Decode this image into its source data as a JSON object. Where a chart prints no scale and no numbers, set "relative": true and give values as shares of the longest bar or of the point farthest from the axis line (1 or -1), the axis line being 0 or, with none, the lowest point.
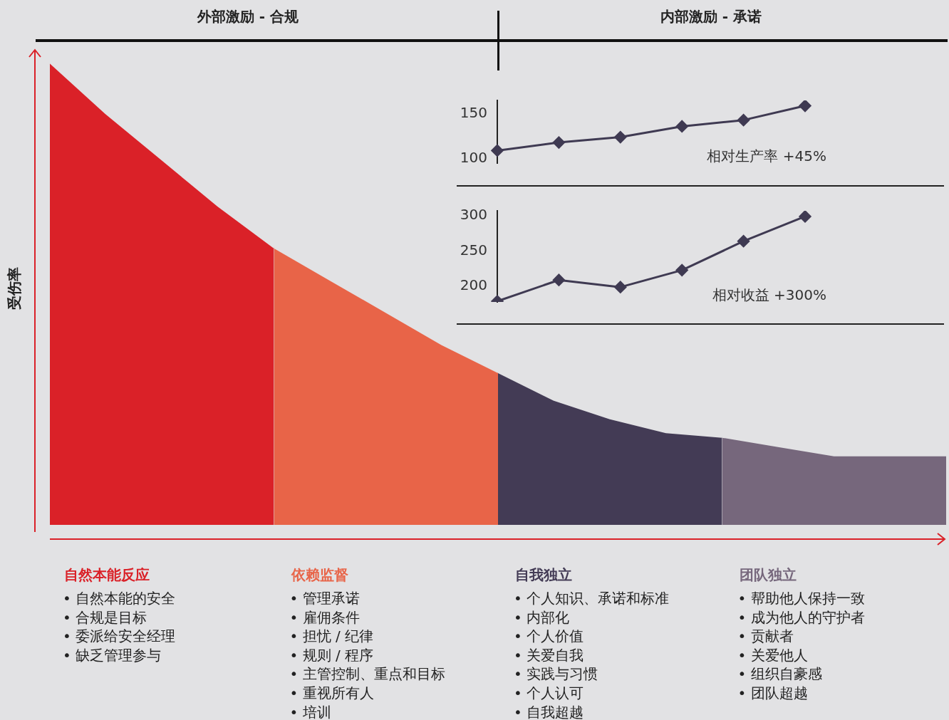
{
  "chart_data": [
    {
      "type": "area",
      "relative": true,
      "ylabel": "受伤率",
      "legend": false,
      "grid": false,
      "tick_labels": false,
      "categories": [
        null,
        null,
        null,
        null,
        null,
        null,
        null,
        null,
        null,
        null,
        null,
        null,
        null,
        null,
        null,
        null,
        null
      ],
      "series": [
        {
          "name": "自然本能反应",
          "color": "#da2128",
          "values": [
            1,
            0.89,
            0.79,
            0.69,
            0.6,
            null,
            null,
            null,
            null,
            null,
            null,
            null,
            null,
            null,
            null,
            null,
            null
          ]
        },
        {
          "name": "依赖监督",
          "color": "#e86448",
          "values": [
            null,
            null,
            null,
            null,
            0.6,
            0.53,
            0.46,
            0.39,
            0.33,
            null,
            null,
            null,
            null,
            null,
            null,
            null,
            null
          ]
        },
        {
          "name": "自我独立",
          "color": "#433b55",
          "values": [
            null,
            null,
            null,
            null,
            null,
            null,
            null,
            null,
            0.33,
            0.27,
            0.23,
            0.2,
            0.19,
            null,
            null,
            null,
            null
          ]
        },
        {
          "name": "团队独立",
          "color": "#76677c",
          "values": [
            null,
            null,
            null,
            null,
            null,
            null,
            null,
            null,
            null,
            null,
            null,
            null,
            0.19,
            0.17,
            0.15,
            0.15,
            0.15
          ]
        }
      ],
      "annotations": [
        "外部激励 - 合规",
        "内部激励 - 承诺",
        "• 自然本能的安全\n• 合规是目标\n• 委派给安全经理\n• 缺乏管理参与",
        "• 管理承诺\n• 雇佣条件\n• 担忧 / 纪律\n• 规则 / 程序\n• 主管控制、重点和目标\n• 重视所有人\n• 培训",
        "• 个人知识、承诺和标准\n• 内部化\n• 个人价值\n• 关爱自我\n• 实践与习惯\n• 个人认可\n• 自我超越",
        "• 帮助他人保持一致\n• 成为他人的守护者\n• 贡献者\n• 关爱他人\n• 组织自豪感\n• 团队超越"
      ]
    },
    {
      "type": "line",
      "title": "相对生产率 +45%",
      "categories": [
        null,
        null,
        null,
        null,
        null,
        null
      ],
      "ylim": [
        95,
        165
      ],
      "yticks": [
        100,
        150
      ],
      "tick_labels": "y",
      "grid": false,
      "legend": false,
      "marker": "diamond",
      "series": [
        {
          "color": "#3f3a52",
          "values": [
            109,
            118,
            124,
            136,
            143,
            159
          ]
        }
      ]
    },
    {
      "type": "line",
      "title": "相对收益 +300%",
      "categories": [
        null,
        null,
        null,
        null,
        null,
        null
      ],
      "ylim": [
        178,
        307
      ],
      "yticks": [
        200,
        250,
        300
      ],
      "tick_labels": "y",
      "grid": false,
      "legend": false,
      "marker": "diamond",
      "series": [
        {
          "color": "#3f3a52",
          "values": [
            179,
            209,
            199,
            223,
            264,
            299
          ]
        }
      ]
    }
  ]
}
